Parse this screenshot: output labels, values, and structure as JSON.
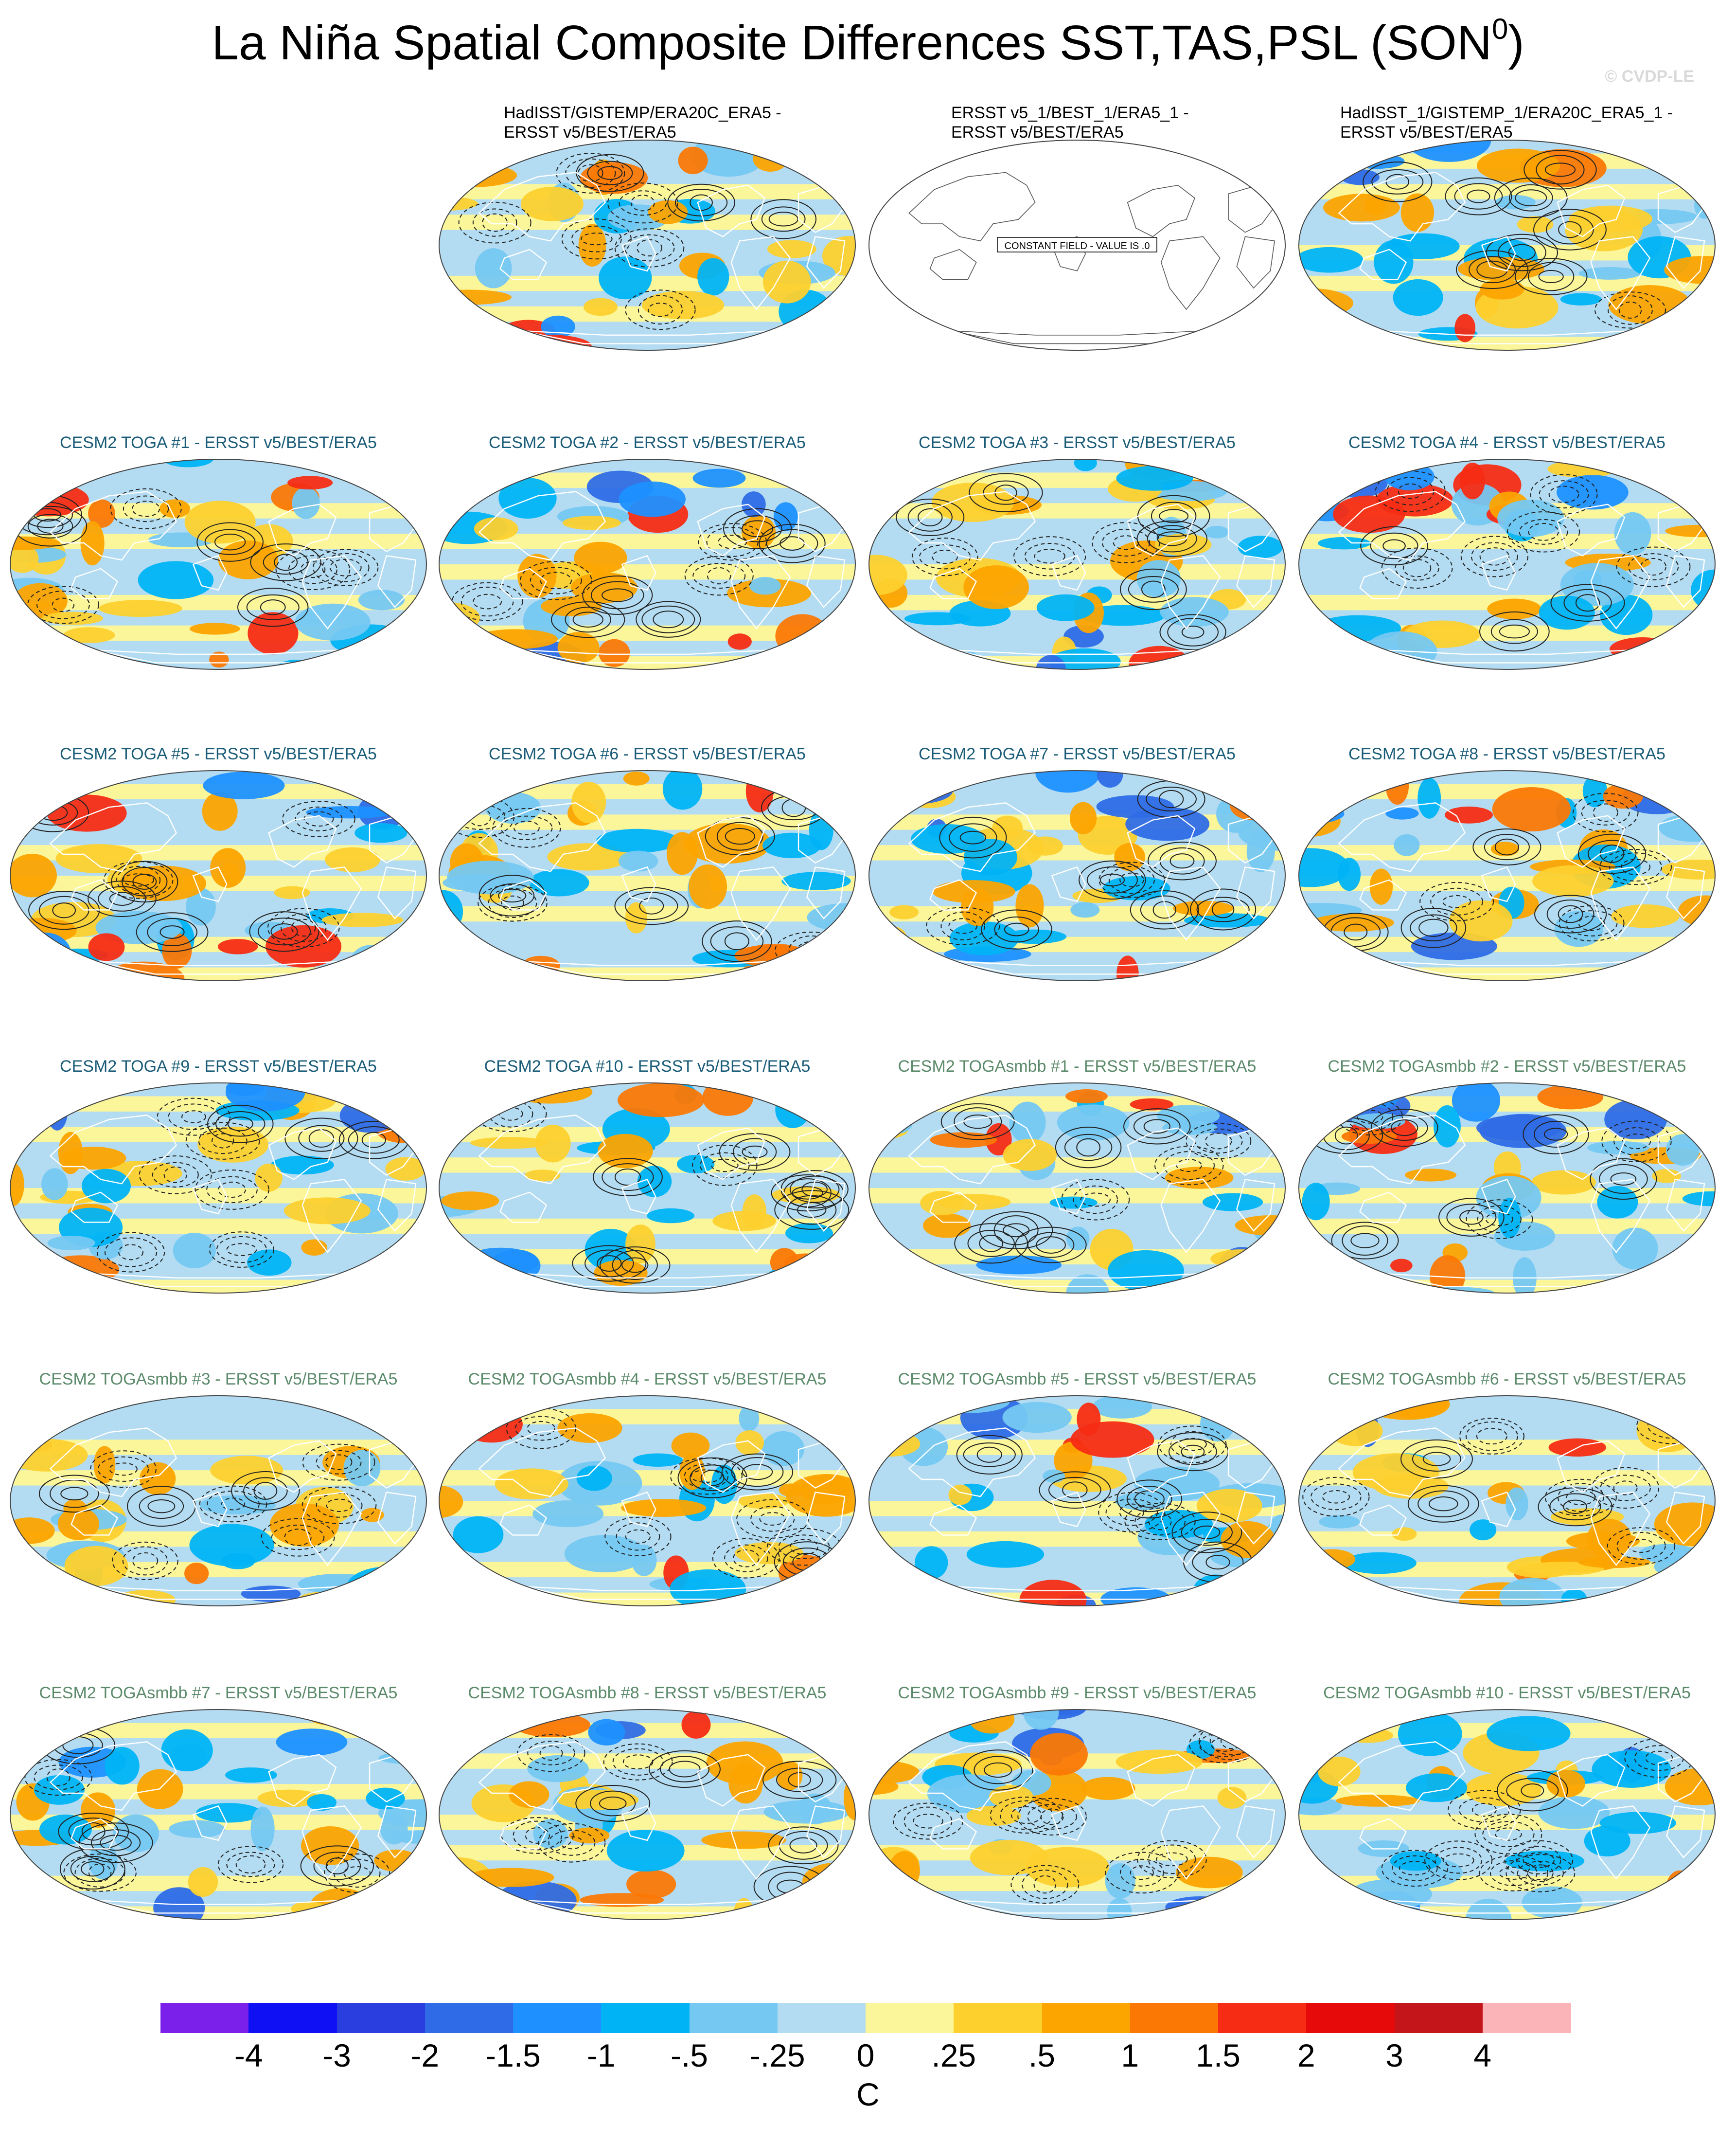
{
  "title": "La Niña Spatial Composite Differences SST,TAS,PSL (SON",
  "title_sup": "0",
  "title_end": ")",
  "credit": "© CVDP-LE",
  "chart_data": {
    "type": "heatmap",
    "variable": "SST,TAS,PSL",
    "season": "SON0",
    "units": "C",
    "projection": "Robinson",
    "colorbar": {
      "ticks": [
        "-4",
        "-3",
        "-2",
        "-1.5",
        "-1",
        "-.5",
        "-.25",
        "0",
        ".25",
        ".5",
        "1",
        "1.5",
        "2",
        "3",
        "4"
      ],
      "colors": [
        "#7b1fea",
        "#1010f5",
        "#2a3ee0",
        "#2f6be6",
        "#1e90ff",
        "#00b3f5",
        "#75c8f2",
        "#b3dcf2",
        "#fbf69a",
        "#fdd02e",
        "#fca400",
        "#fb7805",
        "#f62c14",
        "#e60a0a",
        "#c3151a",
        "#fbb4b8"
      ]
    },
    "panels": [
      {
        "row": 0,
        "col": 1,
        "title_line1": "HadISST/GISTEMP/ERA20C_ERA5 -",
        "title_line2": "ERSST v5/BEST/ERA5",
        "kind": "obs"
      },
      {
        "row": 0,
        "col": 2,
        "title_line1": "ERSST v5_1/BEST_1/ERA5_1 -",
        "title_line2": "ERSST v5/BEST/ERA5",
        "kind": "obs",
        "constant_field": "CONSTANT FIELD - VALUE IS .0"
      },
      {
        "row": 0,
        "col": 3,
        "title_line1": "HadISST_1/GISTEMP_1/ERA20C_ERA5_1 -",
        "title_line2": "ERSST v5/BEST/ERA5",
        "kind": "obs"
      },
      {
        "row": 1,
        "col": 0,
        "title": "CESM2 TOGA #1 - ERSST v5/BEST/ERA5",
        "kind": "toga"
      },
      {
        "row": 1,
        "col": 1,
        "title": "CESM2 TOGA #2 - ERSST v5/BEST/ERA5",
        "kind": "toga"
      },
      {
        "row": 1,
        "col": 2,
        "title": "CESM2 TOGA #3 - ERSST v5/BEST/ERA5",
        "kind": "toga"
      },
      {
        "row": 1,
        "col": 3,
        "title": "CESM2 TOGA #4 - ERSST v5/BEST/ERA5",
        "kind": "toga"
      },
      {
        "row": 2,
        "col": 0,
        "title": "CESM2 TOGA #5 - ERSST v5/BEST/ERA5",
        "kind": "toga"
      },
      {
        "row": 2,
        "col": 1,
        "title": "CESM2 TOGA #6 - ERSST v5/BEST/ERA5",
        "kind": "toga"
      },
      {
        "row": 2,
        "col": 2,
        "title": "CESM2 TOGA #7 - ERSST v5/BEST/ERA5",
        "kind": "toga"
      },
      {
        "row": 2,
        "col": 3,
        "title": "CESM2 TOGA #8 - ERSST v5/BEST/ERA5",
        "kind": "toga"
      },
      {
        "row": 3,
        "col": 0,
        "title": "CESM2 TOGA #9 - ERSST v5/BEST/ERA5",
        "kind": "toga"
      },
      {
        "row": 3,
        "col": 1,
        "title": "CESM2 TOGA #10 - ERSST v5/BEST/ERA5",
        "kind": "toga"
      },
      {
        "row": 3,
        "col": 2,
        "title": "CESM2 TOGAsmbb #1 - ERSST v5/BEST/ERA5",
        "kind": "smbb"
      },
      {
        "row": 3,
        "col": 3,
        "title": "CESM2 TOGAsmbb #2 - ERSST v5/BEST/ERA5",
        "kind": "smbb"
      },
      {
        "row": 4,
        "col": 0,
        "title": "CESM2 TOGAsmbb #3 - ERSST v5/BEST/ERA5",
        "kind": "smbb"
      },
      {
        "row": 4,
        "col": 1,
        "title": "CESM2 TOGAsmbb #4 - ERSST v5/BEST/ERA5",
        "kind": "smbb"
      },
      {
        "row": 4,
        "col": 2,
        "title": "CESM2 TOGAsmbb #5 - ERSST v5/BEST/ERA5",
        "kind": "smbb"
      },
      {
        "row": 4,
        "col": 3,
        "title": "CESM2 TOGAsmbb #6 - ERSST v5/BEST/ERA5",
        "kind": "smbb"
      },
      {
        "row": 5,
        "col": 0,
        "title": "CESM2 TOGAsmbb #7 - ERSST v5/BEST/ERA5",
        "kind": "smbb"
      },
      {
        "row": 5,
        "col": 1,
        "title": "CESM2 TOGAsmbb #8 - ERSST v5/BEST/ERA5",
        "kind": "smbb"
      },
      {
        "row": 5,
        "col": 2,
        "title": "CESM2 TOGAsmbb #9 - ERSST v5/BEST/ERA5",
        "kind": "smbb"
      },
      {
        "row": 5,
        "col": 3,
        "title": "CESM2 TOGAsmbb #10 - ERSST v5/BEST/ERA5",
        "kind": "smbb"
      }
    ]
  }
}
